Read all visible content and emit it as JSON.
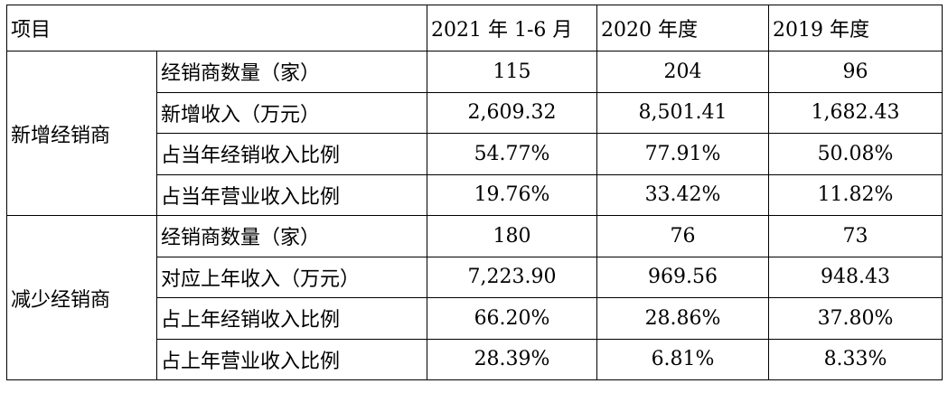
{
  "table": {
    "header": [
      "项目",
      "2021 年 1-6 月",
      "2020 年度",
      "2019 年度"
    ],
    "groups": [
      {
        "label": "新增经销商",
        "rows": [
          [
            "经销商数量（家）",
            "115",
            "204",
            "96"
          ],
          [
            "新增收入（万元）",
            "2,609.32",
            "8,501.41",
            "1,682.43"
          ],
          [
            "占当年经销收入比例",
            "54.77%",
            "77.91%",
            "50.08%"
          ],
          [
            "占当年营业收入比例",
            "19.76%",
            "33.42%",
            "11.82%"
          ]
        ]
      },
      {
        "label": "减少经销商",
        "rows": [
          [
            "经销商数量（家）",
            "180",
            "76",
            "73"
          ],
          [
            "对应上年收入（万元）",
            "7,223.90",
            "969.56",
            "948.43"
          ],
          [
            "占上年经销收入比例",
            "66.20%",
            "28.86%",
            "37.80%"
          ],
          [
            "占上年营业收入比例",
            "28.39%",
            "6.81%",
            "8.33%"
          ]
        ]
      }
    ]
  }
}
